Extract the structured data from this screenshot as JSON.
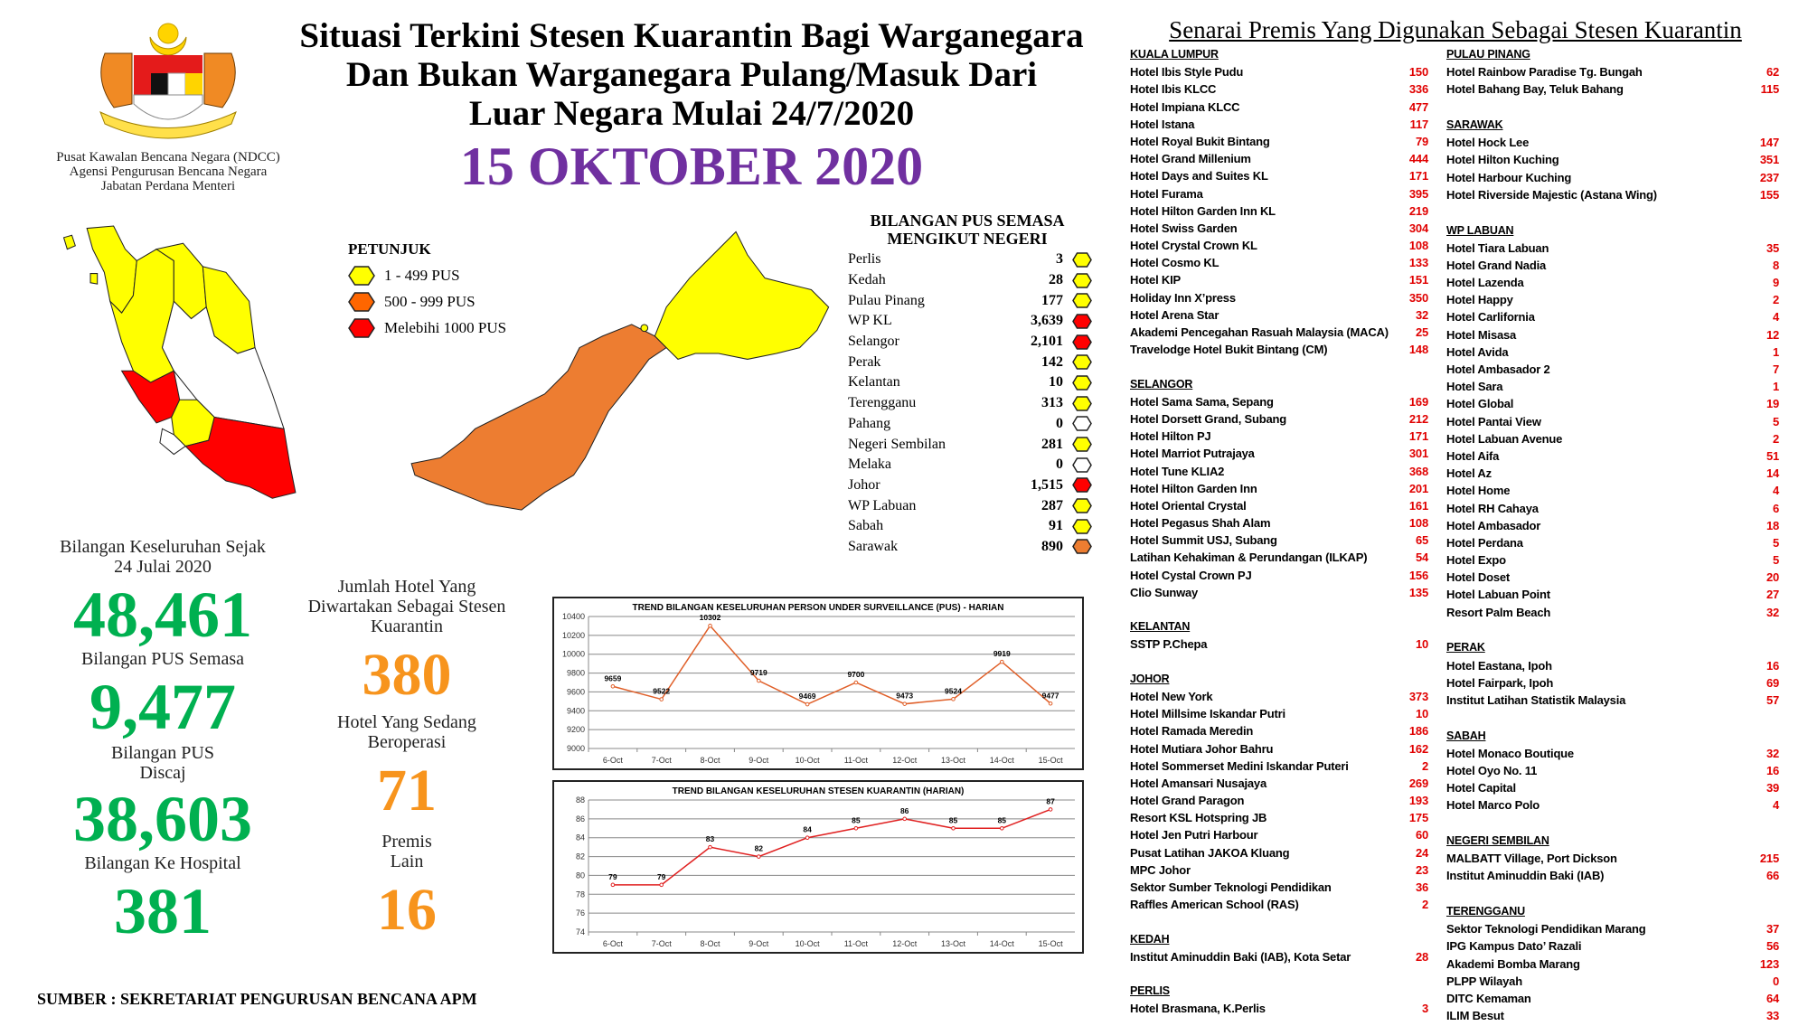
{
  "header": {
    "agency_lines": [
      "Pusat Kawalan Bencana Negara (NDCC)",
      "Agensi Pengurusan Bencana Negara",
      "Jabatan Perdana Menteri"
    ],
    "logo_text": [
      "BERSEKUTU",
      "BERTAMBAH MUTU"
    ],
    "title_lines": [
      "Situasi Terkini Stesen Kuarantin Bagi Warganegara",
      "Dan Bukan Warganegara Pulang/Masuk Dari",
      "Luar Negara Mulai 24/7/2020"
    ],
    "date": "15 OKTOBER 2020"
  },
  "colors": {
    "yellow": "#ffff00",
    "orange": "#ed7d31",
    "red": "#ff0000",
    "white": "#ffffff",
    "green": "#00b050",
    "purple": "#7030a0",
    "amber": "#f7941d"
  },
  "legend": {
    "title": "PETUNJUK",
    "items": [
      {
        "label": "1 - 499 PUS",
        "color": "#ffff00"
      },
      {
        "label": "500 - 999 PUS",
        "color": "#ff6600"
      },
      {
        "label": "Melebihi 1000 PUS",
        "color": "#ff0000"
      }
    ]
  },
  "states": {
    "title_lines": [
      "BILANGAN PUS SEMASA",
      "MENGIKUT NEGERI"
    ],
    "rows": [
      {
        "name": "Perlis",
        "value": "3",
        "level": "yellow"
      },
      {
        "name": "Kedah",
        "value": "28",
        "level": "yellow"
      },
      {
        "name": "Pulau Pinang",
        "value": "177",
        "level": "yellow"
      },
      {
        "name": "WP KL",
        "value": "3,639",
        "level": "red"
      },
      {
        "name": "Selangor",
        "value": "2,101",
        "level": "red"
      },
      {
        "name": "Perak",
        "value": "142",
        "level": "yellow"
      },
      {
        "name": "Kelantan",
        "value": "10",
        "level": "yellow"
      },
      {
        "name": "Terengganu",
        "value": "313",
        "level": "yellow"
      },
      {
        "name": "Pahang",
        "value": "0",
        "level": "white"
      },
      {
        "name": "Negeri Sembilan",
        "value": "281",
        "level": "yellow"
      },
      {
        "name": "Melaka",
        "value": "0",
        "level": "white"
      },
      {
        "name": "Johor",
        "value": "1,515",
        "level": "red"
      },
      {
        "name": "WP Labuan",
        "value": "287",
        "level": "yellow"
      },
      {
        "name": "Sabah",
        "value": "91",
        "level": "yellow"
      },
      {
        "name": "Sarawak",
        "value": "890",
        "level": "orange"
      }
    ]
  },
  "stats": {
    "total_label_lines": [
      "Bilangan Keseluruhan Sejak",
      "24 Julai 2020"
    ],
    "total": "48,461",
    "current_label": "Bilangan PUS Semasa",
    "current": "9,477",
    "discharged_label_lines": [
      "Bilangan PUS",
      "Discaj"
    ],
    "discharged": "38,603",
    "hospital_label": "Bilangan Ke Hospital",
    "hospital": "381",
    "hotels_label_lines": [
      "Jumlah Hotel Yang",
      "Diwartakan Sebagai Stesen",
      "Kuarantin"
    ],
    "hotels": "380",
    "operating_label_lines": [
      "Hotel Yang Sedang",
      "Beroperasi"
    ],
    "operating": "71",
    "other_label_lines": [
      "Premis",
      "Lain"
    ],
    "other": "16"
  },
  "source": "SUMBER : SEKRETARIAT PENGURUSAN BENCANA APM",
  "chart_data": [
    {
      "type": "line",
      "title": "TREND BILANGAN KESELURUHAN PERSON UNDER SURVEILLANCE (PUS) - HARIAN",
      "categories": [
        "6-Oct",
        "7-Oct",
        "8-Oct",
        "9-Oct",
        "10-Oct",
        "11-Oct",
        "12-Oct",
        "13-Oct",
        "14-Oct",
        "15-Oct"
      ],
      "values": [
        9659,
        9522,
        10302,
        9719,
        9469,
        9700,
        9473,
        9524,
        9919,
        9477
      ],
      "ylim": [
        9000,
        10400
      ],
      "yticks": [
        9000,
        9200,
        9400,
        9600,
        9800,
        10000,
        10200,
        10400
      ],
      "grid": true,
      "color": "#e0602a"
    },
    {
      "type": "line",
      "title": "TREND BILANGAN KESELURUHAN STESEN KUARANTIN (HARIAN)",
      "categories": [
        "6-Oct",
        "7-Oct",
        "8-Oct",
        "9-Oct",
        "10-Oct",
        "11-Oct",
        "12-Oct",
        "13-Oct",
        "14-Oct",
        "15-Oct"
      ],
      "values": [
        79,
        79,
        83,
        82,
        84,
        85,
        86,
        85,
        85,
        87
      ],
      "ylim": [
        74,
        88
      ],
      "yticks": [
        74,
        76,
        78,
        80,
        82,
        84,
        86,
        88
      ],
      "grid": true,
      "color": "#e02020"
    }
  ],
  "premises": {
    "title": "Senarai Premis Yang Digunakan Sebagai Stesen Kuarantin",
    "columns": [
      [
        {
          "state": "KUALA LUMPUR",
          "items": [
            [
              "Hotel Ibis Style Pudu",
              "150"
            ],
            [
              "Hotel Ibis KLCC",
              "336"
            ],
            [
              "Hotel Impiana KLCC",
              "477"
            ],
            [
              "Hotel Istana",
              "117"
            ],
            [
              "Hotel Royal Bukit Bintang",
              "79"
            ],
            [
              "Hotel Grand Millenium",
              "444"
            ],
            [
              "Hotel Days and Suites KL",
              "171"
            ],
            [
              "Hotel Furama",
              "395"
            ],
            [
              "Hotel Hilton Garden Inn KL",
              "219"
            ],
            [
              "Hotel Swiss Garden",
              "304"
            ],
            [
              "Hotel Crystal Crown KL",
              "108"
            ],
            [
              "Hotel Cosmo KL",
              "133"
            ],
            [
              "Hotel KIP",
              "151"
            ],
            [
              "Holiday Inn X’press",
              "350"
            ],
            [
              "Hotel Arena Star",
              "32"
            ],
            [
              "Akademi Pencegahan Rasuah Malaysia (MACA)",
              "25"
            ],
            [
              "Travelodge Hotel Bukit Bintang (CM)",
              "148"
            ]
          ]
        },
        {
          "state": "SELANGOR",
          "items": [
            [
              "Hotel Sama Sama, Sepang",
              "169"
            ],
            [
              "Hotel Dorsett Grand, Subang",
              "212"
            ],
            [
              "Hotel Hilton PJ",
              "171"
            ],
            [
              "Hotel Marriot Putrajaya",
              "301"
            ],
            [
              "Hotel Tune KLIA2",
              "368"
            ],
            [
              "Hotel Hilton Garden Inn",
              "201"
            ],
            [
              "Hotel Oriental Crystal",
              "161"
            ],
            [
              "Hotel Pegasus Shah Alam",
              "108"
            ],
            [
              "Hotel Summit USJ, Subang",
              "65"
            ],
            [
              "Latihan Kehakiman & Perundangan (ILKAP)",
              "54"
            ],
            [
              "Hotel Cystal Crown PJ",
              "156"
            ],
            [
              "Clio Sunway",
              "135"
            ]
          ]
        },
        {
          "state": "KELANTAN",
          "items": [
            [
              "SSTP P.Chepa",
              "10"
            ]
          ]
        },
        {
          "state": "JOHOR",
          "items": [
            [
              "Hotel New York",
              "373"
            ],
            [
              "Hotel Millsime Iskandar Putri",
              "10"
            ],
            [
              "Hotel Ramada Meredin",
              "186"
            ],
            [
              "Hotel Mutiara Johor Bahru",
              "162"
            ],
            [
              "Hotel Sommerset Medini Iskandar Puteri",
              "2"
            ],
            [
              "Hotel Amansari Nusajaya",
              "269"
            ],
            [
              "Hotel Grand Paragon",
              "193"
            ],
            [
              "Resort KSL Hotspring JB",
              "175"
            ],
            [
              "Hotel Jen Putri Harbour",
              "60"
            ],
            [
              "Pusat Latihan JAKOA Kluang",
              "24"
            ],
            [
              "MPC Johor",
              "23"
            ],
            [
              "Sektor Sumber Teknologi Pendidikan",
              "36"
            ],
            [
              "Raffles American School (RAS)",
              "2"
            ]
          ]
        },
        {
          "state": "KEDAH",
          "items": [
            [
              "Institut Aminuddin Baki (IAB), Kota Setar",
              "28"
            ]
          ]
        },
        {
          "state": "PERLIS",
          "items": [
            [
              "Hotel Brasmana, K.Perlis",
              "3"
            ]
          ]
        }
      ],
      [
        {
          "state": "PULAU PINANG",
          "items": [
            [
              "Hotel Rainbow Paradise Tg. Bungah",
              "62"
            ],
            [
              "Hotel Bahang Bay, Teluk Bahang",
              "115"
            ]
          ]
        },
        {
          "state": "SARAWAK",
          "items": [
            [
              "Hotel Hock Lee",
              "147"
            ],
            [
              "Hotel Hilton Kuching",
              "351"
            ],
            [
              "Hotel Harbour Kuching",
              "237"
            ],
            [
              "Hotel Riverside Majestic (Astana Wing)",
              "155"
            ]
          ]
        },
        {
          "state": "WP LABUAN",
          "items": [
            [
              "Hotel Tiara Labuan",
              "35"
            ],
            [
              "Hotel Grand Nadia",
              "8"
            ],
            [
              "Hotel Lazenda",
              "9"
            ],
            [
              "Hotel Happy",
              "2"
            ],
            [
              "Hotel Carlifornia",
              "4"
            ],
            [
              "Hotel Misasa",
              "12"
            ],
            [
              "Hotel Avida",
              "1"
            ],
            [
              "Hotel Ambasador 2",
              "7"
            ],
            [
              "Hotel Sara",
              "1"
            ],
            [
              "Hotel Global",
              "19"
            ],
            [
              "Hotel Pantai View",
              "5"
            ],
            [
              "Hotel Labuan Avenue",
              "2"
            ],
            [
              "Hotel Aifa",
              "51"
            ],
            [
              "Hotel Az",
              "14"
            ],
            [
              "Hotel Home",
              "4"
            ],
            [
              "Hotel RH Cahaya",
              "6"
            ],
            [
              "Hotel Ambasador",
              "18"
            ],
            [
              "Hotel Perdana",
              "5"
            ],
            [
              "Hotel Expo",
              "5"
            ],
            [
              "Hotel Doset",
              "20"
            ],
            [
              "Hotel Labuan Point",
              "27"
            ],
            [
              "Resort Palm Beach",
              "32"
            ]
          ]
        },
        {
          "state": "PERAK",
          "items": [
            [
              "Hotel Eastana, Ipoh",
              "16"
            ],
            [
              "Hotel Fairpark, Ipoh",
              "69"
            ],
            [
              "Institut Latihan Statistik Malaysia",
              "57"
            ]
          ]
        },
        {
          "state": "SABAH",
          "items": [
            [
              "Hotel Monaco Boutique",
              "32"
            ],
            [
              "Hotel Oyo No. 11",
              "16"
            ],
            [
              "Hotel Capital",
              "39"
            ],
            [
              "Hotel Marco Polo",
              "4"
            ]
          ]
        },
        {
          "state": "NEGERI SEMBILAN",
          "items": [
            [
              "MALBATT Village, Port Dickson",
              "215"
            ],
            [
              "Institut Aminuddin Baki (IAB)",
              "66"
            ]
          ]
        },
        {
          "state": "TERENGGANU",
          "items": [
            [
              "Sektor Teknologi Pendidikan Marang",
              "37"
            ],
            [
              "IPG Kampus Dato’ Razali",
              "56"
            ],
            [
              "Akademi Bomba Marang",
              "123"
            ],
            [
              "PLPP Wilayah",
              "0"
            ],
            [
              "DITC Kemaman",
              "64"
            ],
            [
              "ILIM Besut",
              "33"
            ]
          ]
        }
      ]
    ]
  }
}
